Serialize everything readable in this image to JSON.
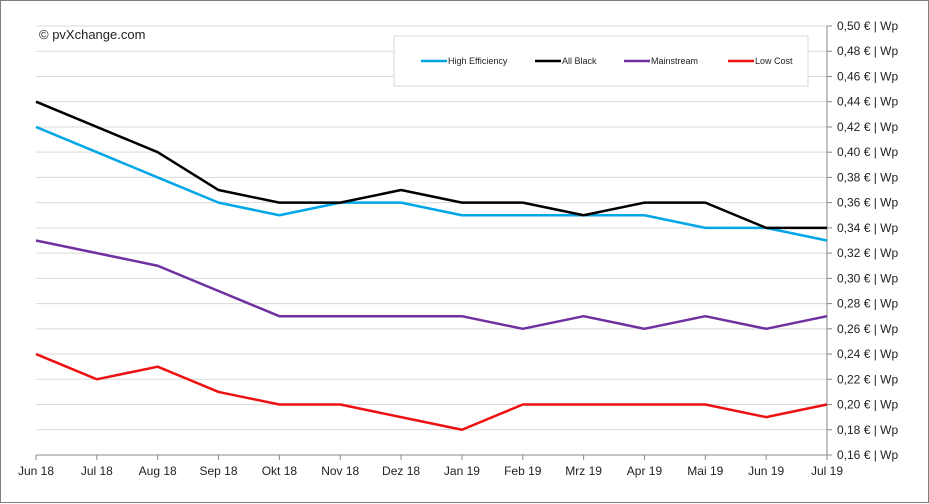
{
  "chart_data": {
    "type": "line",
    "source": "© pvXchange.com",
    "categories": [
      "Jun 18",
      "Jul 18",
      "Aug 18",
      "Sep 18",
      "Okt 18",
      "Nov 18",
      "Dez 18",
      "Jan 19",
      "Feb 19",
      "Mrz 19",
      "Apr 19",
      "Mai 19",
      "Jun 19",
      "Jul 19"
    ],
    "y_ticks": [
      "0,16 € | Wp",
      "0,18 € | Wp",
      "0,20 € | Wp",
      "0,22 € | Wp",
      "0,24 € | Wp",
      "0,26 € | Wp",
      "0,28 € | Wp",
      "0,30 € | Wp",
      "0,32 € | Wp",
      "0,34 € | Wp",
      "0,36 € | Wp",
      "0,38 € | Wp",
      "0,40 € | Wp",
      "0,42 € | Wp",
      "0,44 € | Wp",
      "0,46 € | Wp",
      "0,48 € | Wp",
      "0,50 € | Wp"
    ],
    "ylim": [
      0.16,
      0.5
    ],
    "ylabel": "€ | Wp",
    "grid": true,
    "legend_position": "top-right",
    "series": [
      {
        "name": "High Efficiency",
        "color": "#00a6e6",
        "values": [
          0.42,
          0.4,
          0.38,
          0.36,
          0.35,
          0.36,
          0.36,
          0.35,
          0.35,
          0.35,
          0.35,
          0.34,
          0.34,
          0.33
        ]
      },
      {
        "name": "All Black",
        "color": "#000000",
        "values": [
          0.44,
          0.42,
          0.4,
          0.37,
          0.36,
          0.36,
          0.37,
          0.36,
          0.36,
          0.35,
          0.36,
          0.36,
          0.34,
          0.34
        ]
      },
      {
        "name": "Mainstream",
        "color": "#7030a0",
        "values": [
          0.33,
          0.32,
          0.31,
          0.29,
          0.27,
          0.27,
          0.27,
          0.27,
          0.26,
          0.27,
          0.26,
          0.27,
          0.26,
          0.27
        ]
      },
      {
        "name": "Low Cost",
        "color": "#ee1111",
        "values": [
          0.24,
          0.22,
          0.23,
          0.21,
          0.2,
          0.2,
          0.19,
          0.18,
          0.2,
          0.2,
          0.2,
          0.2,
          0.19,
          0.2
        ]
      }
    ]
  }
}
